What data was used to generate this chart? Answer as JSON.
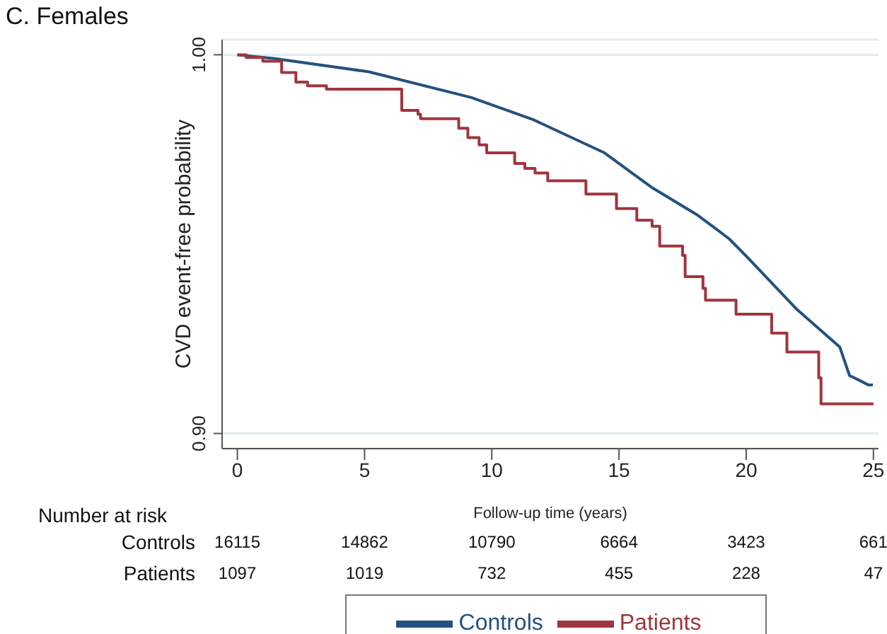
{
  "chart_data": {
    "type": "step",
    "title": "C. Females",
    "xlabel": "Follow-up time (years)",
    "ylabel": "CVD event-free probability",
    "xlim": [
      -0.6,
      25.2
    ],
    "xticks": [
      0,
      5,
      10,
      15,
      20,
      25
    ],
    "ylim": [
      0.896,
      1.004
    ],
    "yticks": [
      {
        "value": 0.9,
        "label": "0.90"
      },
      {
        "value": 1.0,
        "label": "1.00"
      }
    ],
    "grid": "y",
    "legend": "bottom",
    "marker": "none",
    "series": [
      {
        "name": "Controls",
        "type": "line",
        "color": "#24517f",
        "x": [
          0,
          1.46,
          5.17,
          9.2,
          11.65,
          14.43,
          16.28,
          18.1,
          19.33,
          19.98,
          22.0,
          23.68,
          24.06,
          24.43,
          24.8,
          24.98
        ],
        "values": [
          1.0,
          0.999,
          0.9955,
          0.9887,
          0.9828,
          0.9741,
          0.965,
          0.9576,
          0.9514,
          0.947,
          0.9327,
          0.9228,
          0.9153,
          0.9141,
          0.9128,
          0.9128
        ]
      },
      {
        "name": "Patients",
        "color": "#a0353f",
        "x": [
          0,
          0.35,
          1.0,
          1.74,
          2.3,
          2.76,
          3.5,
          6.46,
          7.1,
          7.2,
          8.7,
          9.06,
          9.5,
          9.8,
          10.9,
          11.3,
          11.7,
          12.2,
          13.7,
          14.9,
          15.7,
          16.3,
          16.6,
          17.5,
          17.6,
          18.3,
          18.4,
          19.6,
          21.0,
          21.6,
          22.85,
          22.94,
          25
        ],
        "values": [
          1.0,
          0.9993,
          0.9983,
          0.9953,
          0.9928,
          0.9918,
          0.9909,
          0.9853,
          0.9843,
          0.9831,
          0.9806,
          0.9781,
          0.9762,
          0.9741,
          0.9713,
          0.97,
          0.9688,
          0.9667,
          0.9632,
          0.9594,
          0.9563,
          0.9547,
          0.9495,
          0.947,
          0.9414,
          0.9383,
          0.9352,
          0.9315,
          0.9265,
          0.9215,
          0.9147,
          0.9078,
          0.9078
        ]
      }
    ],
    "annotations": [
      "Number at risk",
      "Controls",
      "16115",
      "14862",
      "10790",
      "6664",
      "3423",
      "661",
      "Patients",
      "1097",
      "1019",
      "732",
      "455",
      "228",
      "47"
    ]
  }
}
